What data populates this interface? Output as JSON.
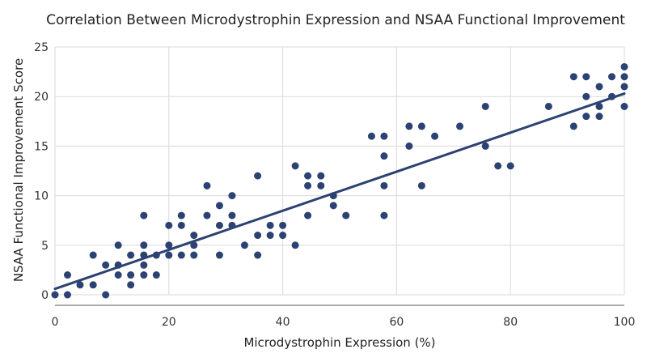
{
  "chart_data": {
    "type": "scatter",
    "title": "Correlation Between Microdystrophin Expression and NSAA Functional Improvement",
    "xlabel": "Microdystrophin Expression (%)",
    "ylabel": "NSAA Functional Improvement Score",
    "xlim": [
      0,
      100
    ],
    "ylim": [
      0,
      25
    ],
    "xticks": [
      0,
      20,
      40,
      60,
      80,
      100
    ],
    "yticks": [
      0,
      5,
      10,
      15,
      20,
      25
    ],
    "grid": true,
    "colors": {
      "points": "#2c4272",
      "trend": "#2c4272",
      "grid": "#d9d9d9"
    },
    "series": [
      {
        "points": [
          [
            0,
            0
          ],
          [
            2.2,
            2
          ],
          [
            2.2,
            0
          ],
          [
            4.4,
            1
          ],
          [
            6.7,
            4
          ],
          [
            6.7,
            1
          ],
          [
            8.9,
            3
          ],
          [
            8.9,
            0
          ],
          [
            11.1,
            5
          ],
          [
            11.1,
            3
          ],
          [
            11.1,
            2
          ],
          [
            13.3,
            4
          ],
          [
            13.3,
            2
          ],
          [
            13.3,
            1
          ],
          [
            15.6,
            8
          ],
          [
            15.6,
            5
          ],
          [
            15.6,
            4
          ],
          [
            15.6,
            3
          ],
          [
            15.6,
            2
          ],
          [
            17.8,
            4
          ],
          [
            17.8,
            2
          ],
          [
            20,
            7
          ],
          [
            20,
            5
          ],
          [
            20,
            4
          ],
          [
            22.2,
            8
          ],
          [
            22.2,
            7
          ],
          [
            22.2,
            4
          ],
          [
            24.4,
            6
          ],
          [
            24.4,
            5
          ],
          [
            24.4,
            4
          ],
          [
            26.7,
            11
          ],
          [
            26.7,
            8
          ],
          [
            28.9,
            9
          ],
          [
            28.9,
            7
          ],
          [
            28.9,
            4
          ],
          [
            31.1,
            10
          ],
          [
            31.1,
            8
          ],
          [
            31.1,
            7
          ],
          [
            33.3,
            5
          ],
          [
            35.6,
            12
          ],
          [
            35.6,
            6
          ],
          [
            35.6,
            4
          ],
          [
            37.8,
            7
          ],
          [
            37.8,
            6
          ],
          [
            40,
            7
          ],
          [
            40,
            6
          ],
          [
            42.2,
            13
          ],
          [
            42.2,
            5
          ],
          [
            44.4,
            12
          ],
          [
            44.4,
            11
          ],
          [
            44.4,
            8
          ],
          [
            46.7,
            12
          ],
          [
            46.7,
            11
          ],
          [
            48.9,
            10
          ],
          [
            48.9,
            9
          ],
          [
            51.1,
            8
          ],
          [
            55.6,
            16
          ],
          [
            57.8,
            16
          ],
          [
            57.8,
            14
          ],
          [
            57.8,
            11
          ],
          [
            57.8,
            8
          ],
          [
            62.2,
            17
          ],
          [
            62.2,
            15
          ],
          [
            64.4,
            17
          ],
          [
            64.4,
            11
          ],
          [
            66.7,
            16
          ],
          [
            71.1,
            17
          ],
          [
            75.6,
            19
          ],
          [
            75.6,
            15
          ],
          [
            77.8,
            13
          ],
          [
            80,
            13
          ],
          [
            86.7,
            19
          ],
          [
            91.1,
            22
          ],
          [
            91.1,
            17
          ],
          [
            93.3,
            22
          ],
          [
            93.3,
            20
          ],
          [
            93.3,
            18
          ],
          [
            95.6,
            21
          ],
          [
            95.6,
            19
          ],
          [
            95.6,
            18
          ],
          [
            97.8,
            22
          ],
          [
            97.8,
            20
          ],
          [
            100,
            23
          ],
          [
            100,
            22
          ],
          [
            100,
            21
          ],
          [
            100,
            19
          ]
        ]
      }
    ],
    "trendline": {
      "x": [
        0,
        100
      ],
      "y": [
        0.6,
        20.3
      ]
    }
  }
}
